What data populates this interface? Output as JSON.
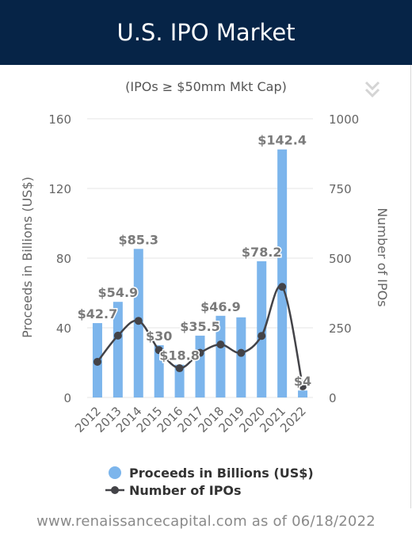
{
  "header": {
    "title": "U.S. IPO Market"
  },
  "chart_data": {
    "type": "bar+line",
    "subtitle": "(IPOs ≥ $50mm Mkt Cap)",
    "categories": [
      "2012",
      "2013",
      "2014",
      "2015",
      "2016",
      "2017",
      "2018",
      "2019",
      "2020",
      "2021",
      "2022"
    ],
    "y_left": {
      "label": "Proceeds in Billions (US$)",
      "ticks": [
        "0",
        "40",
        "80",
        "120",
        "160"
      ],
      "range": [
        0,
        160
      ]
    },
    "y_right": {
      "label": "Number of IPOs",
      "ticks": [
        "0",
        "250",
        "500",
        "750",
        "1000"
      ],
      "range": [
        0,
        1000
      ]
    },
    "series": [
      {
        "name": "Proceeds in Billions (US$)",
        "type": "bar",
        "color": "#7cb5ec",
        "values": [
          42.7,
          54.9,
          85.3,
          30,
          18.8,
          35.5,
          46.9,
          46,
          78.2,
          142.4,
          4
        ],
        "labels": [
          "$42.7",
          "$54.9",
          "$85.3",
          "$30",
          "$18.8",
          "$35.5",
          "$46.9",
          "",
          "$78.2",
          "$142.4",
          "$4"
        ]
      },
      {
        "name": "Number of IPOs",
        "type": "line",
        "axis": "right",
        "color": "#434348",
        "values": [
          128,
          222,
          275,
          170,
          105,
          160,
          190,
          160,
          221,
          397,
          40
        ]
      }
    ],
    "grid": true,
    "legend_placement": "bottom"
  },
  "footer": {
    "text": "www.renaissancecapital.com as of 06/18/2022"
  }
}
